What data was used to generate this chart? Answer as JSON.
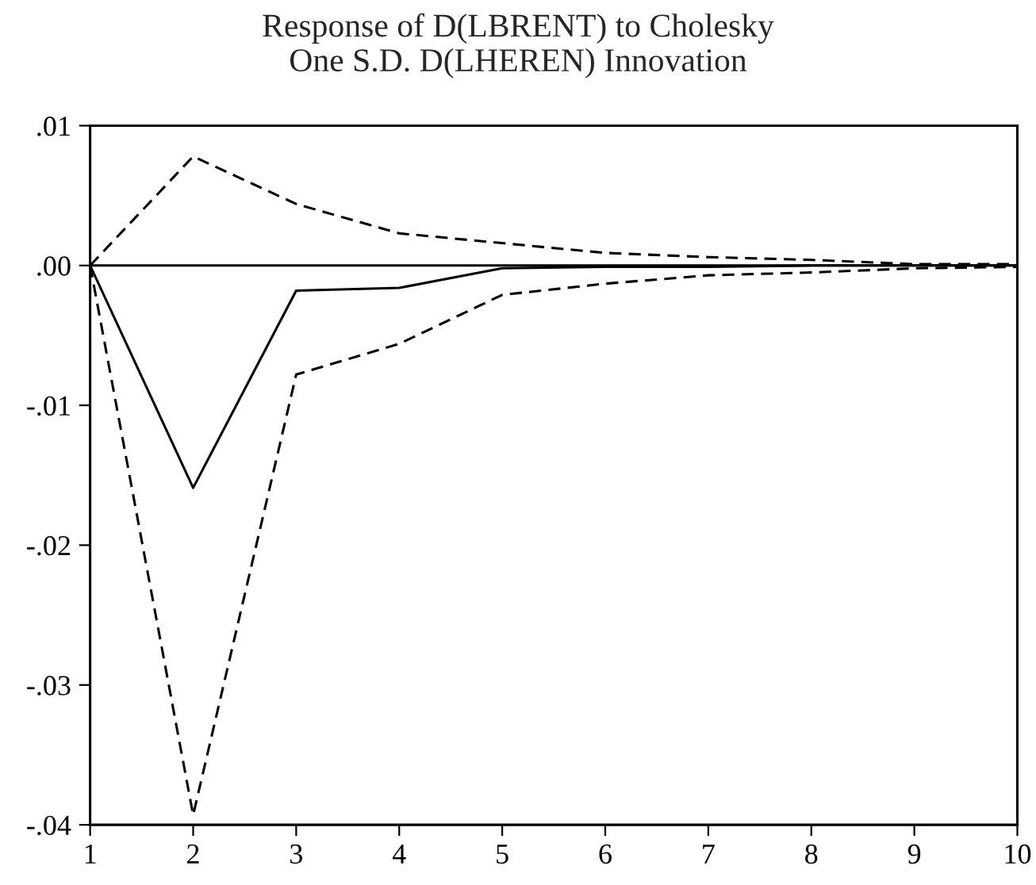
{
  "chart_data": {
    "type": "line",
    "title": "Response of D(LBRENT) to Cholesky\nOne S.D. D(LHEREN) Innovation",
    "x": [
      1,
      2,
      3,
      4,
      5,
      6,
      7,
      8,
      9,
      10
    ],
    "series": [
      {
        "color": "#000000",
        "line_style": "solid",
        "values": [
          0,
          -0.0159,
          -0.0018,
          -0.0016,
          -0.0002,
          -0.0001,
          -0.0001,
          0,
          0,
          0
        ]
      },
      {
        "color": "#000000",
        "line_style": "dashed",
        "values": [
          0,
          0.0078,
          0.0044,
          0.0023,
          0.0016,
          0.0009,
          0.0006,
          0.0004,
          0.0001,
          0.0001
        ]
      },
      {
        "color": "#000000",
        "line_style": "dashed",
        "values": [
          0,
          -0.0393,
          -0.0078,
          -0.0056,
          -0.0021,
          -0.0013,
          -0.0007,
          -0.0005,
          -0.0002,
          -0.0001
        ]
      }
    ],
    "xlim": [
      1,
      10
    ],
    "xticks": [
      1,
      2,
      3,
      4,
      5,
      6,
      7,
      8,
      9,
      10
    ],
    "ylim": [
      -0.04,
      0.01
    ],
    "yticks": [
      {
        "value": 0.01,
        "label": ".01"
      },
      {
        "value": 0,
        "label": ".00"
      },
      {
        "value": -0.01,
        "label": "-.01"
      },
      {
        "value": -0.02,
        "label": "-.02"
      },
      {
        "value": -0.03,
        "label": "-.03"
      },
      {
        "value": -0.04,
        "label": "-.04"
      }
    ],
    "ref_lines": [
      {
        "axis": "y",
        "value": 0,
        "color": "#000000",
        "line_style": "solid"
      }
    ],
    "grid": false,
    "marker": "none"
  }
}
